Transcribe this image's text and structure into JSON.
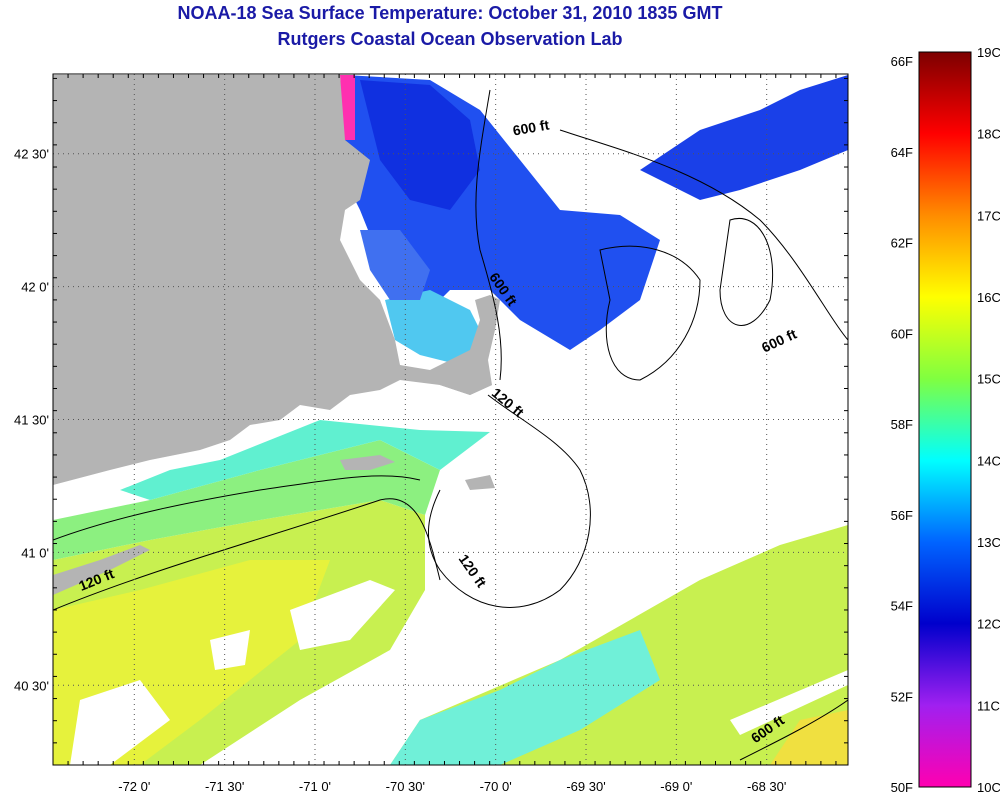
{
  "header": {
    "title": "NOAA-18 Sea Surface Temperature:  October 31, 2010 1835 GMT",
    "subtitle": "Rutgers Coastal Ocean Observation Lab"
  },
  "map": {
    "lon_ticks": [
      "-72 0'",
      "-71 30'",
      "-71 0'",
      "-70 30'",
      "-70 0'",
      "-69 30'",
      "-69 0'",
      "-68 30'"
    ],
    "lat_ticks": [
      "42 30'",
      "42 0'",
      "41 30'",
      "41 0'",
      "40 30'"
    ],
    "lon_range": [
      -72.45,
      -68.05
    ],
    "lat_range": [
      40.2,
      42.8
    ],
    "land_color": "#b4b4b4",
    "contour_labels": [
      {
        "text": "600 ft",
        "lon": -69.8,
        "lat": 42.58,
        "rotate": -10
      },
      {
        "text": "600 ft",
        "lon": -69.98,
        "lat": 41.98,
        "rotate": 55
      },
      {
        "text": "600 ft",
        "lon": -68.42,
        "lat": 41.78,
        "rotate": -25
      },
      {
        "text": "120 ft",
        "lon": -69.95,
        "lat": 41.55,
        "rotate": 40
      },
      {
        "text": "120 ft",
        "lon": -70.15,
        "lat": 40.92,
        "rotate": 55
      },
      {
        "text": "120 ft",
        "lon": -72.2,
        "lat": 40.88,
        "rotate": -22
      },
      {
        "text": "600 ft",
        "lon": -68.48,
        "lat": 40.32,
        "rotate": -35
      }
    ]
  },
  "colorbar": {
    "f_labels": [
      "66F",
      "64F",
      "62F",
      "60F",
      "58F",
      "56F",
      "54F",
      "52F",
      "50F"
    ],
    "c_labels": [
      "19C",
      "18C",
      "17C",
      "16C",
      "15C",
      "14C",
      "13C",
      "12C",
      "11C",
      "10C"
    ],
    "stops": [
      "#7d0000",
      "#ff0000",
      "#ff8c00",
      "#ffff00",
      "#80ff40",
      "#00ffff",
      "#0064ff",
      "#0000cc",
      "#a020f0",
      "#ff00b0"
    ]
  }
}
